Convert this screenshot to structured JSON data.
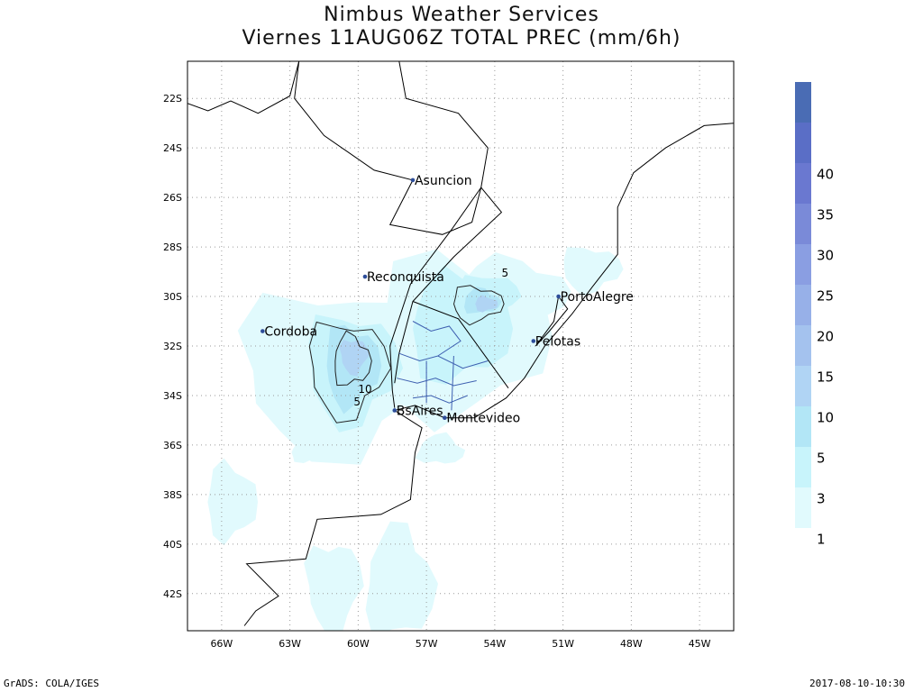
{
  "title": "Nimbus Weather Services",
  "subtitle": "Viernes 11AUG06Z TOTAL PREC (mm/6h)",
  "map": {
    "lon_range": [
      -67.5,
      -43.5
    ],
    "lat_range": [
      -43.5,
      -20.5
    ],
    "lon_ticks": [
      {
        "value": -66,
        "label": "66W"
      },
      {
        "value": -63,
        "label": "63W"
      },
      {
        "value": -60,
        "label": "60W"
      },
      {
        "value": -57,
        "label": "57W"
      },
      {
        "value": -54,
        "label": "54W"
      },
      {
        "value": -51,
        "label": "51W"
      },
      {
        "value": -48,
        "label": "48W"
      },
      {
        "value": -45,
        "label": "45W"
      }
    ],
    "lat_ticks": [
      {
        "value": -22,
        "label": "22S"
      },
      {
        "value": -24,
        "label": "24S"
      },
      {
        "value": -26,
        "label": "26S"
      },
      {
        "value": -28,
        "label": "28S"
      },
      {
        "value": -30,
        "label": "30S"
      },
      {
        "value": -32,
        "label": "32S"
      },
      {
        "value": -34,
        "label": "34S"
      },
      {
        "value": -36,
        "label": "36S"
      },
      {
        "value": -38,
        "label": "38S"
      },
      {
        "value": -40,
        "label": "40S"
      },
      {
        "value": -42,
        "label": "42S"
      }
    ],
    "grid": "dotted",
    "cities": [
      {
        "name": "Asuncion",
        "lon": -57.6,
        "lat": -25.3,
        "align": "right"
      },
      {
        "name": "Reconquista",
        "lon": -59.7,
        "lat": -29.2,
        "align": "right"
      },
      {
        "name": "PortoAlegre",
        "lon": -51.2,
        "lat": -30.0,
        "align": "right"
      },
      {
        "name": "Cordoba",
        "lon": -64.2,
        "lat": -31.4,
        "align": "right"
      },
      {
        "name": "Pelotas",
        "lon": -52.3,
        "lat": -31.8,
        "align": "right"
      },
      {
        "name": "BsAires",
        "lon": -58.4,
        "lat": -34.6,
        "align": "right"
      },
      {
        "name": "Montevideo",
        "lon": -56.2,
        "lat": -34.9,
        "align": "right"
      }
    ],
    "contour_labels": [
      {
        "text": "5",
        "lon": -53.7,
        "lat": -29.2
      },
      {
        "text": "10",
        "lon": -60.0,
        "lat": -33.9
      },
      {
        "text": "5",
        "lon": -60.2,
        "lat": -34.4
      }
    ]
  },
  "colorbar": {
    "levels": [
      "1",
      "3",
      "5",
      "10",
      "15",
      "20",
      "25",
      "30",
      "35",
      "40"
    ],
    "colors": [
      "#e1fafd",
      "#c8f4fb",
      "#b2e6f6",
      "#b0d4f4",
      "#a4c2ee",
      "#97b0e8",
      "#8a9ee2",
      "#7a8ad8",
      "#6a78d0",
      "#5a6ec6",
      "#4a6cb4"
    ]
  },
  "footer": {
    "left": "GrADS: COLA/IGES",
    "right": "2017-08-10-10:30"
  }
}
